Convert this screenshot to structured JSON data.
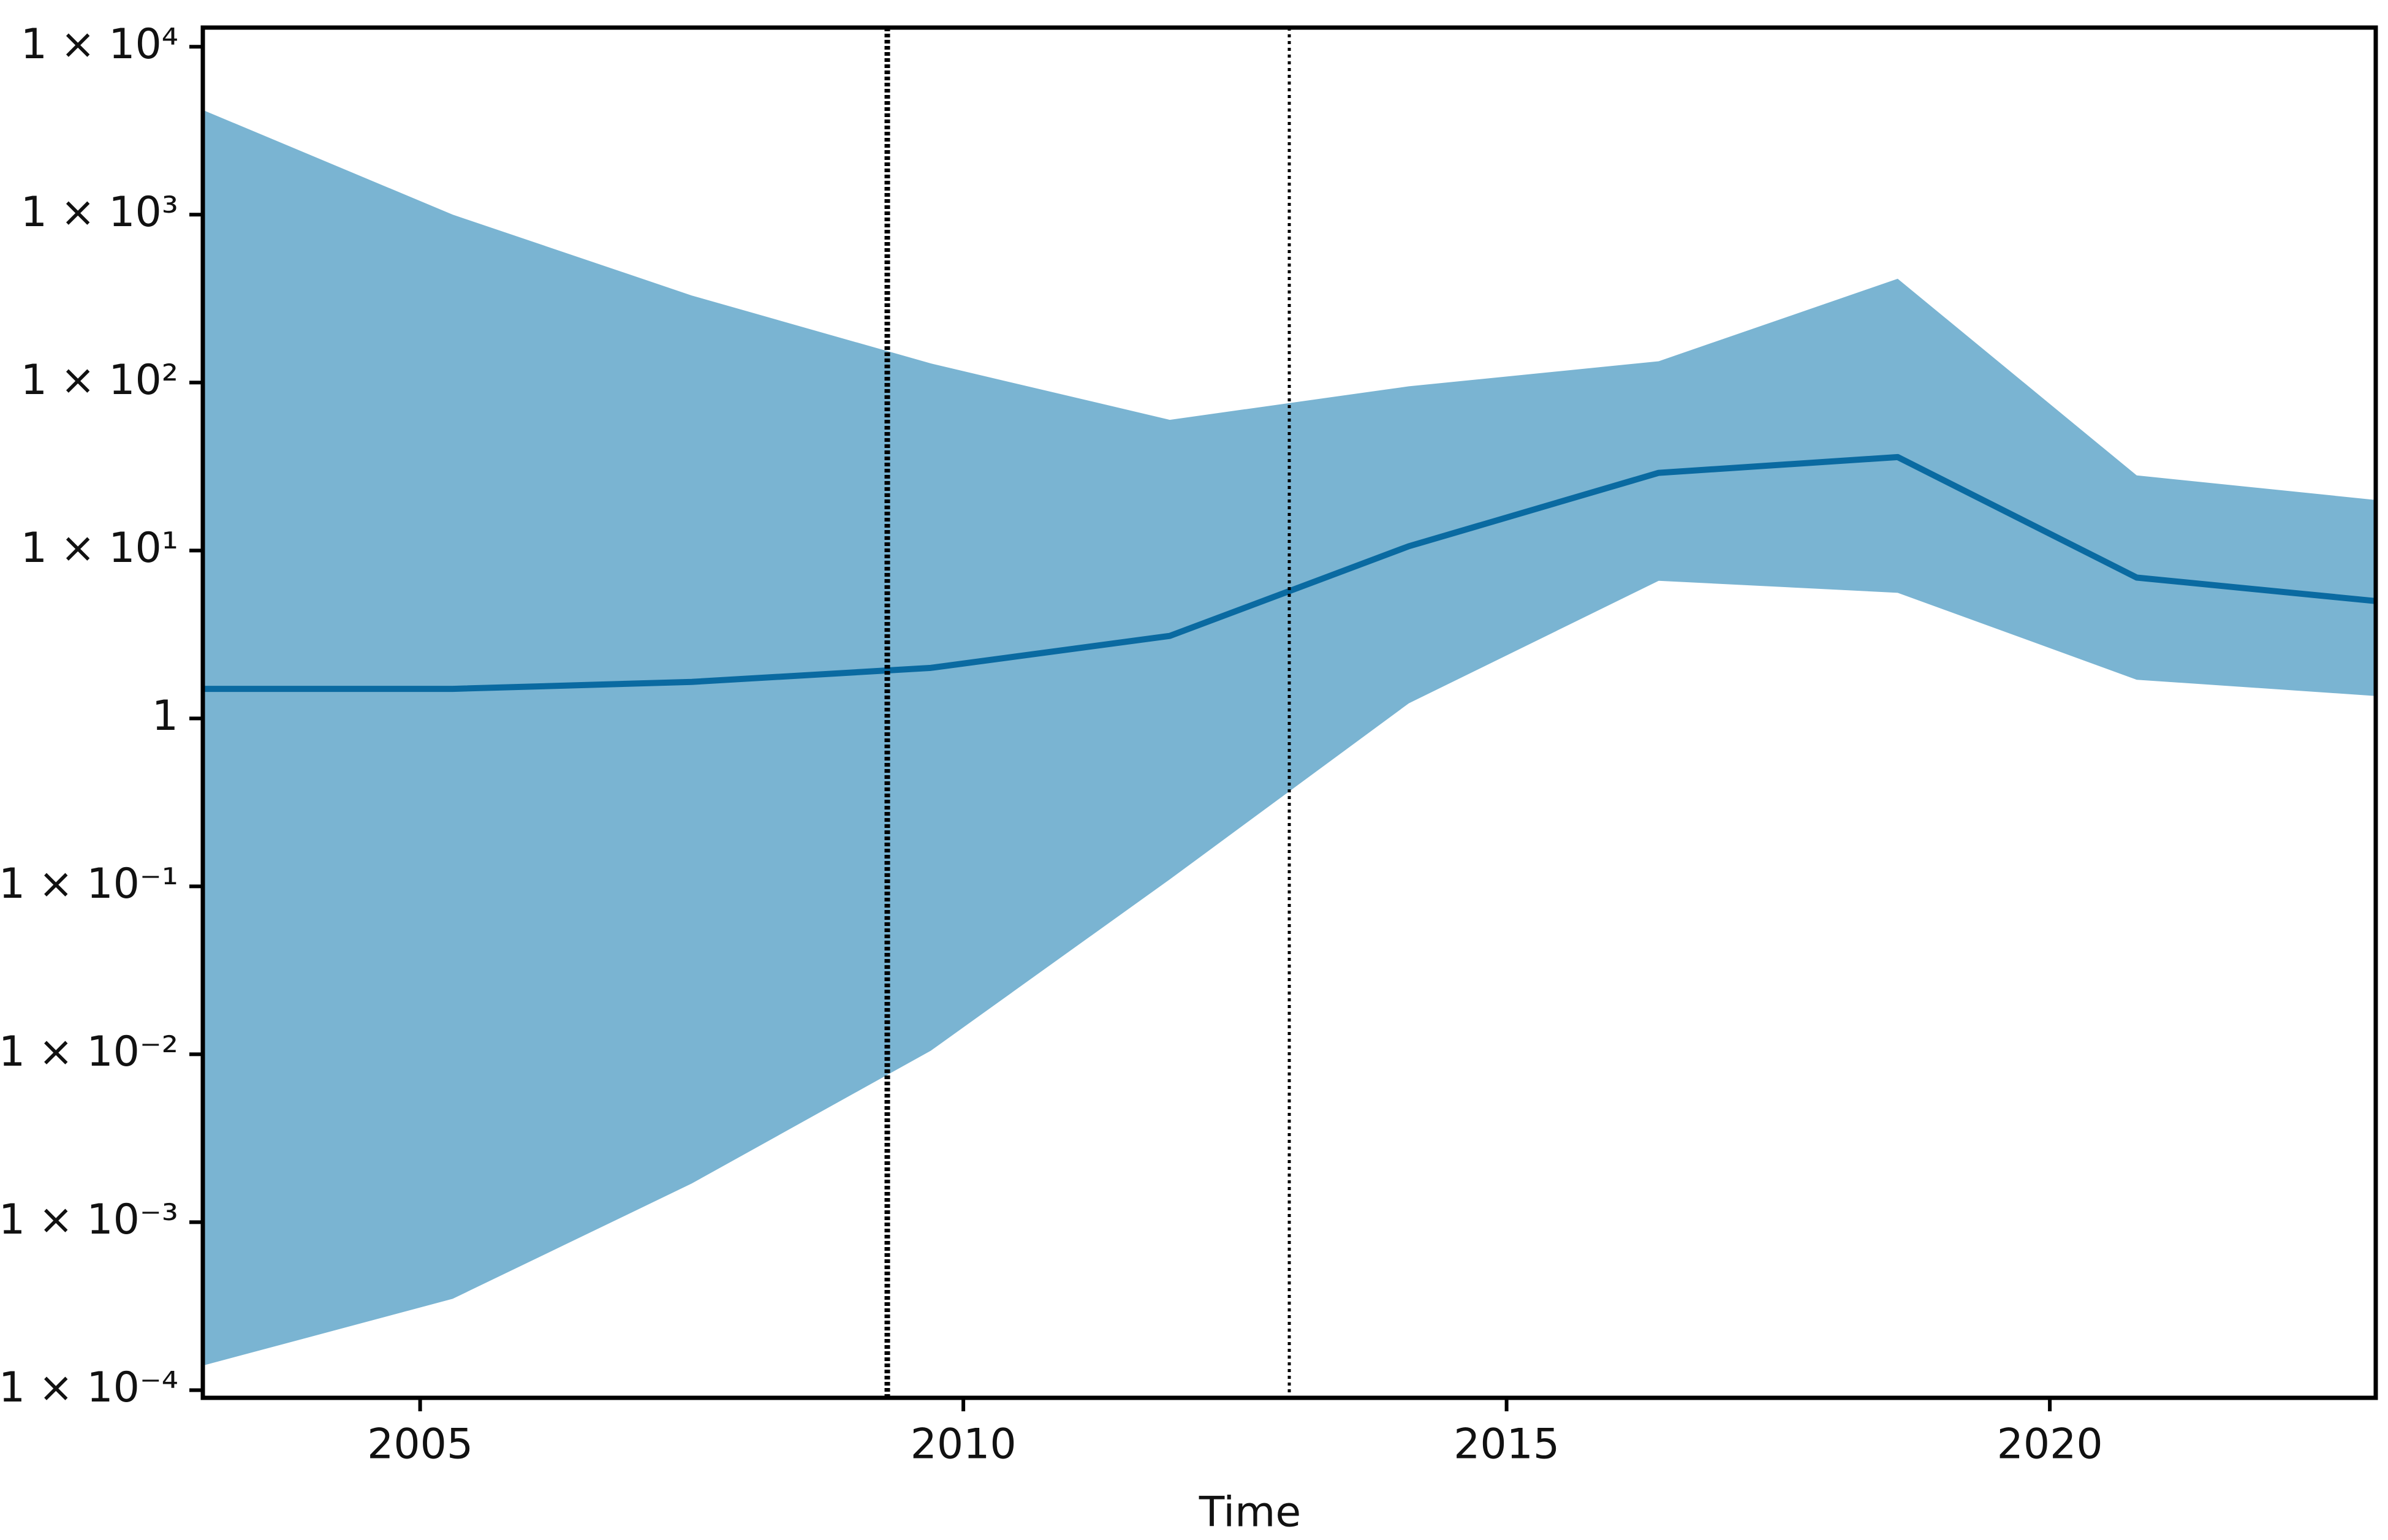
{
  "chart_data": {
    "type": "line",
    "xlabel": "Time",
    "x": [
      2003.0,
      2005.3,
      2007.5,
      2009.7,
      2011.9,
      2014.1,
      2016.4,
      2018.6,
      2020.8,
      2023.0
    ],
    "values": [
      1.5,
      1.5,
      1.65,
      2.0,
      3.1,
      10.6,
      29,
      36,
      6.9,
      5.0
    ],
    "color": "#0a6aa1",
    "band": {
      "upper": [
        4200,
        1000,
        330,
        130,
        60,
        95,
        134,
        415,
        28,
        20
      ],
      "lower": [
        0.00014,
        0.00035,
        0.0017,
        0.0105,
        0.11,
        1.23,
        6.6,
        5.6,
        1.7,
        1.36
      ],
      "color": "#7ab4d2"
    },
    "log_y": true,
    "xlim": [
      2003,
      2023
    ],
    "xticks": [
      2005,
      2010,
      2015,
      2020
    ],
    "ylim": [
      9e-05,
      13000
    ],
    "yticks": [
      {
        "value": 0.0001,
        "label": "1 × 10⁻⁴"
      },
      {
        "value": 0.001,
        "label": "1 × 10⁻³"
      },
      {
        "value": 0.01,
        "label": "1 × 10⁻²"
      },
      {
        "value": 0.1,
        "label": "1 × 10⁻¹"
      },
      1,
      {
        "value": 10,
        "label": "1 × 10¹"
      },
      {
        "value": 100,
        "label": "1 × 10²"
      },
      {
        "value": 1000,
        "label": "1 × 10³"
      },
      {
        "value": 10000,
        "label": "1 × 10⁴"
      }
    ],
    "vlines": [
      {
        "x": 2009.3,
        "style": "thick"
      },
      {
        "x": 2013.0,
        "style": "thin"
      }
    ]
  }
}
